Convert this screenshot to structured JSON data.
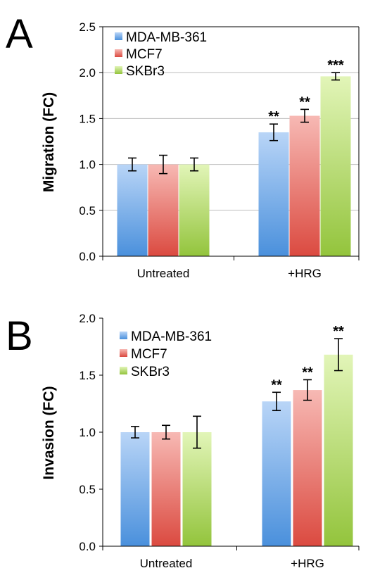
{
  "colors": {
    "MDA-MB-361": {
      "top": "#b9d5f7",
      "bottom": "#4a90dc"
    },
    "MCF7": {
      "top": "#f7b9b4",
      "bottom": "#db4a40"
    },
    "SKBr3": {
      "top": "#e2f5b8",
      "bottom": "#93c43c"
    }
  },
  "chart_data": [
    {
      "type": "bar",
      "panel": "A",
      "ylabel": "Migration (FC)",
      "ylim": [
        0,
        2.5
      ],
      "yticks": [
        "0.0",
        "0.5",
        "1.0",
        "1.5",
        "2.0",
        "2.5"
      ],
      "categories": [
        "Untreated",
        "+HRG"
      ],
      "legend_position": "top-left",
      "grid": true,
      "series": [
        {
          "name": "MDA-MB-361",
          "values": [
            1.0,
            1.35
          ],
          "errors": [
            0.07,
            0.09
          ],
          "significance": [
            "",
            "**"
          ]
        },
        {
          "name": "MCF7",
          "values": [
            1.0,
            1.53
          ],
          "errors": [
            0.1,
            0.07
          ],
          "significance": [
            "",
            "**"
          ]
        },
        {
          "name": "SKBr3",
          "values": [
            1.0,
            1.96
          ],
          "errors": [
            0.07,
            0.04
          ],
          "significance": [
            "",
            "***"
          ]
        }
      ]
    },
    {
      "type": "bar",
      "panel": "B",
      "ylabel": "Invasion (FC)",
      "ylim": [
        0,
        2.0
      ],
      "yticks": [
        "0.0",
        "0.5",
        "1.0",
        "1.5",
        "2.0"
      ],
      "categories": [
        "Untreated",
        "+HRG"
      ],
      "legend_position": "top-left",
      "grid": false,
      "series": [
        {
          "name": "MDA-MB-361",
          "values": [
            1.0,
            1.27
          ],
          "errors": [
            0.05,
            0.08
          ],
          "significance": [
            "",
            "**"
          ]
        },
        {
          "name": "MCF7",
          "values": [
            1.0,
            1.37
          ],
          "errors": [
            0.06,
            0.09
          ],
          "significance": [
            "",
            "**"
          ]
        },
        {
          "name": "SKBr3",
          "values": [
            1.0,
            1.68
          ],
          "errors": [
            0.14,
            0.14
          ],
          "significance": [
            "",
            "**"
          ]
        }
      ]
    }
  ]
}
